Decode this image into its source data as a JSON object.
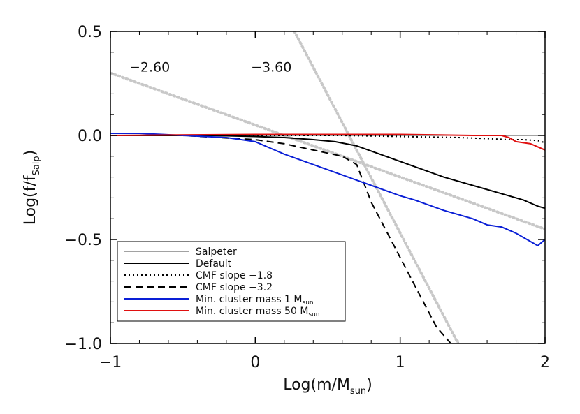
{
  "chart_data": {
    "type": "line",
    "xlabel": "Log(m/M_sun)",
    "xlabel_main": "Log(m/M",
    "xlabel_sub": "sun",
    "xlabel_close": ")",
    "ylabel_main": "Log(f/f",
    "ylabel_sub": "Salp",
    "ylabel_close": ")",
    "xlim": [
      -1,
      2
    ],
    "ylim": [
      -1.0,
      0.5
    ],
    "xticks": [
      -1,
      0,
      1,
      2
    ],
    "xtick_labels": [
      "−1",
      "0",
      "1",
      "2"
    ],
    "yticks": [
      -1.0,
      -0.5,
      0.0,
      0.5
    ],
    "ytick_labels": [
      "−1.0",
      "−0.5",
      "0.0",
      "0.5"
    ],
    "grid": false,
    "legend_position": "bottom-left",
    "annotations": [
      {
        "text": "−2.60",
        "x": -0.87,
        "y": 0.33
      },
      {
        "text": "−3.60",
        "x": -0.03,
        "y": 0.33
      }
    ],
    "reference_lines": [
      {
        "slope_label": "−2.60",
        "x": [
          -1,
          2
        ],
        "y": [
          0.3,
          -0.45
        ]
      },
      {
        "slope_label": "−3.60",
        "x": [
          0.27,
          1.4
        ],
        "y": [
          0.5,
          -1.0
        ]
      }
    ],
    "series": [
      {
        "name": "Salpeter",
        "color": "#444444",
        "dash": "solid",
        "legend_main": "Salpeter",
        "legend_sub": "",
        "x": [
          -1,
          2
        ],
        "y": [
          0.0,
          0.0
        ]
      },
      {
        "name": "Default",
        "color": "#000000",
        "dash": "solid",
        "legend_main": "Default",
        "legend_sub": "",
        "x": [
          -1.0,
          -0.5,
          -0.3,
          0.0,
          0.2,
          0.4,
          0.55,
          0.7,
          0.9,
          1.1,
          1.3,
          1.5,
          1.7,
          1.85,
          1.95,
          2.0
        ],
        "y": [
          0.0,
          0.0,
          0.0,
          -0.005,
          -0.01,
          -0.02,
          -0.03,
          -0.05,
          -0.1,
          -0.15,
          -0.2,
          -0.24,
          -0.28,
          -0.31,
          -0.34,
          -0.35
        ]
      },
      {
        "name": "CMF slope −1.8",
        "color": "#000000",
        "dash": "dotted",
        "legend_main": "CMF slope −1.8",
        "legend_sub": "",
        "x": [
          -1.0,
          0.0,
          0.6,
          1.0,
          1.4,
          1.6,
          1.75,
          1.85,
          1.95,
          2.0
        ],
        "y": [
          0.0,
          0.0,
          0.0,
          -0.005,
          -0.01,
          -0.015,
          -0.02,
          -0.02,
          -0.025,
          -0.035
        ]
      },
      {
        "name": "CMF slope −3.2",
        "color": "#000000",
        "dash": "dashed",
        "legend_main": "CMF slope −3.2",
        "legend_sub": "",
        "x": [
          -1.0,
          -0.5,
          0.0,
          0.2,
          0.4,
          0.6,
          0.7,
          0.8,
          0.95,
          1.1,
          1.25,
          1.35
        ],
        "y": [
          0.0,
          0.0,
          -0.02,
          -0.04,
          -0.07,
          -0.1,
          -0.14,
          -0.32,
          -0.52,
          -0.72,
          -0.92,
          -1.0
        ]
      },
      {
        "name": "Min. cluster mass 1 Msun",
        "color": "#0a1fd6",
        "dash": "solid",
        "legend_main": "Min. cluster mass 1 M",
        "legend_sub": "sun",
        "x": [
          -1.0,
          -0.8,
          -0.5,
          -0.2,
          0.0,
          0.2,
          0.4,
          0.6,
          0.8,
          1.0,
          1.1,
          1.3,
          1.5,
          1.6,
          1.7,
          1.8,
          1.9,
          1.95,
          2.0
        ],
        "y": [
          0.01,
          0.01,
          0.0,
          -0.01,
          -0.03,
          -0.09,
          -0.14,
          -0.19,
          -0.24,
          -0.29,
          -0.31,
          -0.36,
          -0.4,
          -0.43,
          -0.44,
          -0.47,
          -0.51,
          -0.53,
          -0.5
        ]
      },
      {
        "name": "Min. cluster mass 50 Msun",
        "color": "#e01010",
        "dash": "solid",
        "legend_main": "Min. cluster mass 50 M",
        "legend_sub": "sun",
        "x": [
          -1.0,
          0.0,
          0.5,
          1.0,
          1.5,
          1.7,
          1.75,
          1.8,
          1.9,
          2.0
        ],
        "y": [
          0.0,
          0.005,
          0.005,
          0.005,
          0.0,
          0.0,
          -0.01,
          -0.03,
          -0.04,
          -0.07
        ]
      }
    ]
  }
}
